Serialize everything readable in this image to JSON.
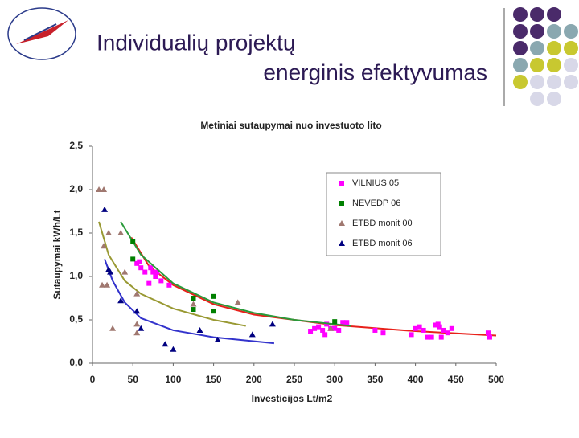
{
  "slide": {
    "title": [
      "Individualių projektų",
      "energinis efektyvumas"
    ]
  },
  "chart_data": {
    "type": "scatter",
    "title": "Metiniai sutaupymai nuo investuoto lito",
    "x_label": "Investicijos Lt/m2",
    "y_label": "Sutaupymai kWh/Lt",
    "xlim": [
      0,
      500
    ],
    "xticks": [
      0,
      50,
      100,
      150,
      200,
      250,
      300,
      350,
      400,
      450,
      500
    ],
    "ylim": [
      0,
      2.5
    ],
    "yticks": [
      {
        "value": 0,
        "label": "0,0"
      },
      {
        "value": 0.5,
        "label": "0,5"
      },
      {
        "value": 1,
        "label": "1,0"
      },
      {
        "value": 1.5,
        "label": "1,5"
      },
      {
        "value": 2,
        "label": "2,0"
      },
      {
        "value": 2.5,
        "label": "2,5"
      }
    ],
    "grid": false,
    "legend": "upper right",
    "series": [
      {
        "name": "VILNIUS 05",
        "color": "#ff00ff",
        "marker": "square",
        "trend_color": "#e8201a",
        "x": [
          55,
          58,
          60,
          65,
          70,
          72,
          75,
          78,
          80,
          85,
          95,
          270,
          275,
          280,
          285,
          288,
          290,
          295,
          300,
          305,
          310,
          315,
          350,
          360,
          395,
          400,
          405,
          410,
          415,
          420,
          425,
          428,
          430,
          432,
          435,
          440,
          445,
          490,
          492
        ],
        "values": [
          1.15,
          1.17,
          1.1,
          1.05,
          0.92,
          1.1,
          1.05,
          1.0,
          1.05,
          0.95,
          0.9,
          0.37,
          0.4,
          0.42,
          0.38,
          0.33,
          0.45,
          0.4,
          0.4,
          0.38,
          0.47,
          0.47,
          0.38,
          0.35,
          0.33,
          0.4,
          0.42,
          0.38,
          0.3,
          0.3,
          0.44,
          0.45,
          0.42,
          0.3,
          0.38,
          0.35,
          0.4,
          0.35,
          0.3
        ],
        "trend": {
          "x": [
            48,
            70,
            100,
            150,
            200,
            300,
            400,
            500
          ],
          "y": [
            1.45,
            1.12,
            0.9,
            0.68,
            0.56,
            0.44,
            0.37,
            0.32
          ]
        }
      },
      {
        "name": "NEVEDP 06",
        "color": "#008000",
        "marker": "square",
        "trend_color": "#2a9a3a",
        "x": [
          50,
          50,
          125,
          125,
          150,
          150,
          300
        ],
        "values": [
          1.4,
          1.2,
          0.75,
          0.62,
          0.6,
          0.77,
          0.48
        ],
        "trend": {
          "x": [
            35,
            60,
            100,
            150,
            200,
            250,
            320
          ],
          "y": [
            1.63,
            1.25,
            0.92,
            0.7,
            0.58,
            0.5,
            0.43
          ]
        }
      },
      {
        "name": "ETBD monit 00",
        "color": "#a07870",
        "marker": "triangle",
        "trend_color": "#999933",
        "x": [
          8,
          14,
          12,
          14,
          18,
          20,
          25,
          35,
          40,
          55,
          55,
          55,
          125,
          180,
          295
        ],
        "values": [
          2.0,
          2.0,
          0.9,
          1.35,
          0.9,
          1.5,
          0.4,
          1.5,
          1.05,
          0.35,
          0.45,
          0.8,
          0.68,
          0.7,
          0.4
        ],
        "trend": {
          "x": [
            8,
            20,
            40,
            60,
            100,
            150,
            190
          ],
          "y": [
            1.63,
            1.25,
            0.95,
            0.8,
            0.63,
            0.5,
            0.43
          ]
        }
      },
      {
        "name": "ETBD monit 06",
        "color": "#000080",
        "marker": "triangle",
        "trend_color": "#3333cc",
        "x": [
          15,
          20,
          22,
          35,
          55,
          60,
          90,
          100,
          133,
          155,
          198,
          223
        ],
        "values": [
          1.77,
          1.08,
          1.05,
          0.72,
          0.6,
          0.4,
          0.22,
          0.16,
          0.38,
          0.27,
          0.33,
          0.45
        ],
        "trend": {
          "x": [
            15,
            25,
            40,
            60,
            100,
            150,
            225
          ],
          "y": [
            1.2,
            0.95,
            0.7,
            0.52,
            0.38,
            0.3,
            0.23
          ]
        }
      }
    ]
  }
}
